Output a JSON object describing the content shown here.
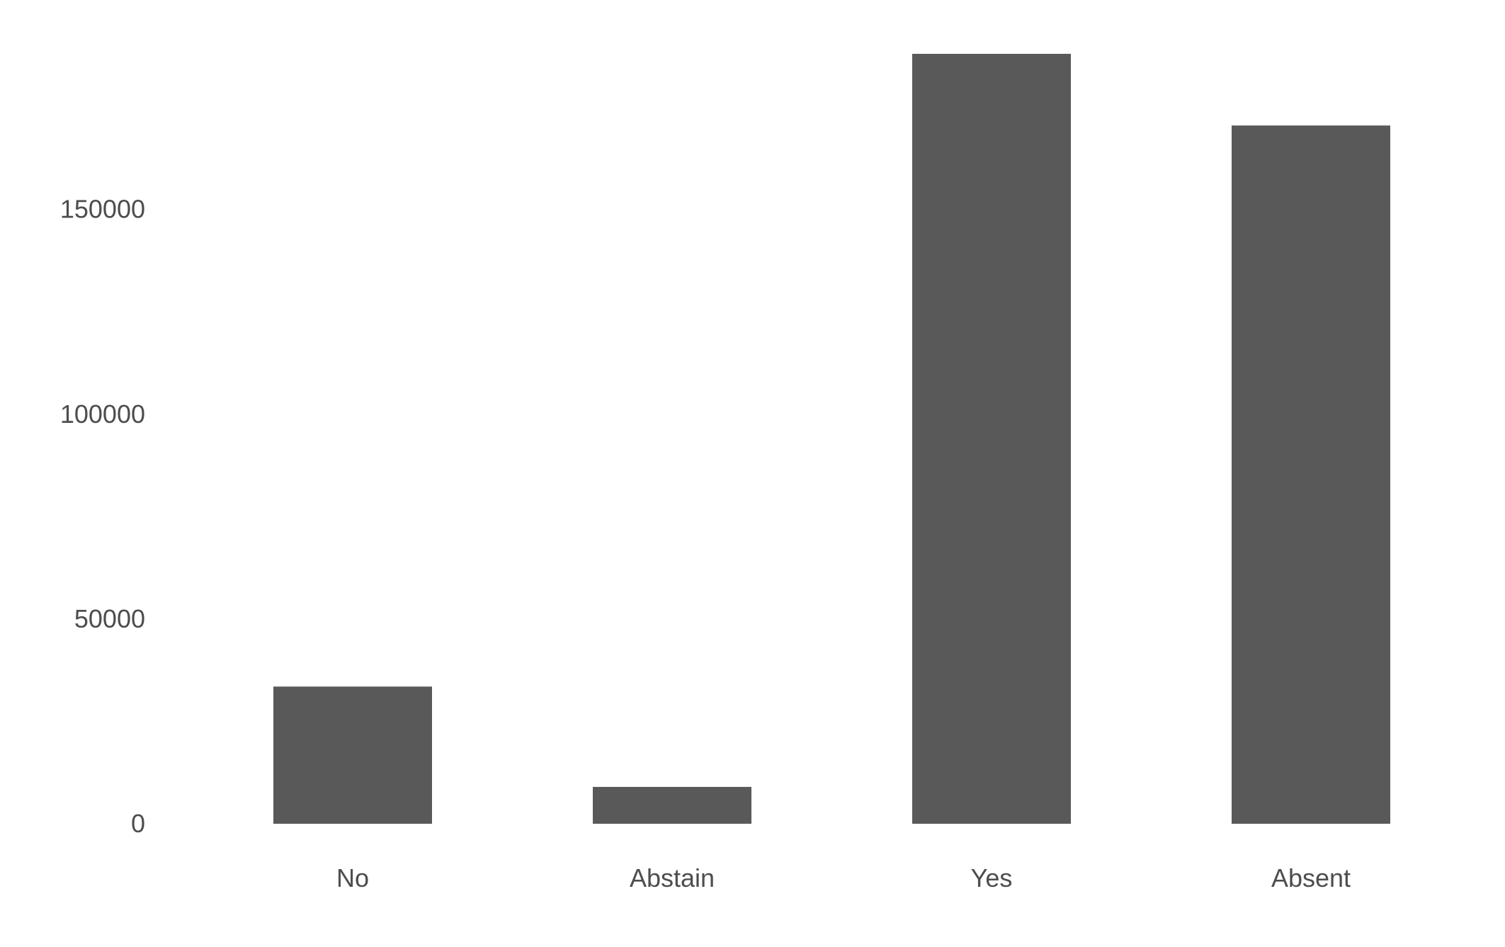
{
  "chart_data": {
    "type": "bar",
    "title": "",
    "xlabel": "",
    "ylabel": "",
    "categories": [
      "No",
      "Abstain",
      "Yes",
      "Absent"
    ],
    "values": [
      33500,
      9000,
      188000,
      170500
    ],
    "ylim": [
      0,
      188000
    ],
    "yticks": [
      0,
      50000,
      100000,
      150000
    ],
    "ytick_labels": [
      "0",
      "50000",
      "100000",
      "150000"
    ],
    "grid": false,
    "legend": "none",
    "bar_color": "#595959",
    "text_color": "#4d4d4d",
    "background": "#ffffff"
  }
}
